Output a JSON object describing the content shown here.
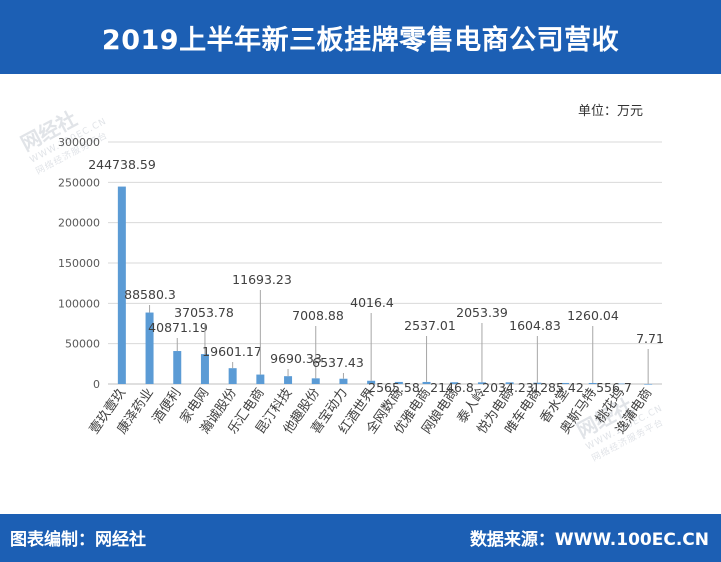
{
  "header": {
    "title": "2019上半年新三板挂牌零售电商公司营收"
  },
  "unit_label": "单位：万元",
  "footer": {
    "left": "图表编制：网经社",
    "right": "数据来源：WWW.100EC.CN"
  },
  "watermark": {
    "brand": "网经社",
    "url": "WWW.100EC.CN",
    "slogan": "网络经济服务平台"
  },
  "colors": {
    "header_bg": "#1c5fb4",
    "bar": "#5b9bd5",
    "grid": "#d9d9d9"
  },
  "chart_data": {
    "type": "bar",
    "title": "2019上半年新三板挂牌零售电商公司营收",
    "xlabel": "",
    "ylabel": "",
    "ylim": [
      0,
      300000
    ],
    "yticks": [
      0,
      50000,
      100000,
      150000,
      200000,
      250000,
      300000
    ],
    "grid": true,
    "categories": [
      "壹玖壹玖",
      "康泽药业",
      "酒便利",
      "家电网",
      "瀚诚股份",
      "乐汇电商",
      "昆汀科技",
      "他趣股份",
      "喜宝动力",
      "红酒世界",
      "全网数商",
      "优雅电商",
      "网娘电商",
      "泰人岭",
      "悦为电商",
      "唯车电商",
      "香水堂",
      "奥斯马特",
      "桃花坞",
      "逸蒲电商"
    ],
    "values": [
      244738.59,
      88580.3,
      40871.19,
      37053.78,
      19601.17,
      11693.23,
      9690.33,
      7008.88,
      6537.43,
      4016.4,
      2565.58,
      2537.01,
      2146.8,
      2053.39,
      2034.23,
      1604.83,
      1285.42,
      1260.04,
      556.7,
      7.71
    ],
    "labels": [
      "244738.59",
      "88580.3",
      "40871.19",
      "37053.78",
      "19601.17",
      "11693.23",
      "9690.33",
      "7008.88",
      "6537.43",
      "4016.4",
      "2565.58",
      "2537.01",
      "2146.8",
      "2053.39",
      "2034.23",
      "1604.83",
      "1285.42",
      "1260.04",
      "556.7",
      "7.71"
    ]
  }
}
